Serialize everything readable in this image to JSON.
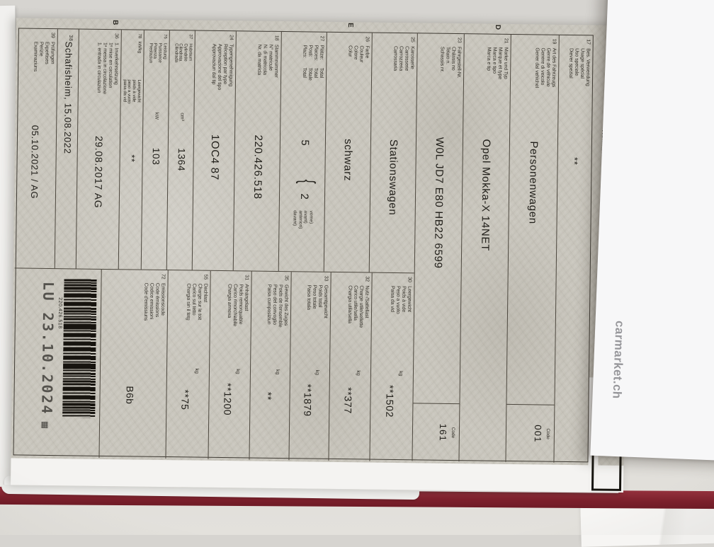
{
  "scene": {
    "card_brand": "carmarket.ch"
  },
  "doc": {
    "header_label": "Nummer",
    "code_label": "Code",
    "sections": {
      "d": "D",
      "e": "E",
      "b": "B"
    },
    "codes": {
      "vehicle_type": "001",
      "color": "161"
    },
    "barcode_number": "220.426.518",
    "stamp": "LU 23.10.2024",
    "fields": {
      "f17": {
        "num": "17",
        "label": [
          "Bes. Verwendung",
          "Usage spécial",
          "Uso speciale",
          "Diever spezial"
        ],
        "value": "**"
      },
      "f19": {
        "num": "19",
        "label": [
          "Art des Fahrzeugs",
          "Genre de véhicule",
          "Genere di veicolo",
          "Gener dal vehichel"
        ],
        "value": "Personenwagen"
      },
      "f21": {
        "num": "21",
        "label": [
          "Marke und Typ",
          "Marque et type",
          "Marca e tipo",
          "Marca e tip"
        ],
        "value": "Opel Mokka-X 14NET"
      },
      "f23": {
        "num": "23",
        "label": [
          "Fahrgestell-Nr.",
          "Châssis no",
          "Telaio n.",
          "Schassis nr."
        ],
        "value": "W0L JD7 E80 HB22 6599"
      },
      "f25": {
        "num": "25",
        "label": [
          "Karosserie",
          "Carrosserie",
          "Carrozzeria",
          "Carrossaria"
        ],
        "value": "Stationswagen"
      },
      "f26": {
        "num": "26",
        "label": [
          "Farbe",
          "Couleur",
          "Colore",
          "Colur"
        ],
        "value": "schwarz"
      },
      "f27": {
        "num": "27",
        "label_a": [
          "Plätze:",
          "Places:",
          "Posti:",
          "Plazs:"
        ],
        "label_b": [
          "Total",
          "Total",
          "Totale",
          "Total"
        ],
        "value_total": "5",
        "value_front": "2",
        "front_note": [
          "vorne)",
          "avant)",
          "anteriori)",
          "davant)"
        ]
      },
      "f18": {
        "num": "18",
        "label": [
          "Stammnummer",
          "N° matricule",
          "N. di matricola",
          "Nr. da matricla"
        ],
        "value": "220.426.518"
      },
      "f24": {
        "num": "24",
        "label": [
          "Typengenehmigung",
          "Réception par type",
          "Approvazione del tipo",
          "Approvaziun dal tip"
        ],
        "value": "1OC4 87"
      },
      "f37": {
        "num": "37",
        "label": [
          "Hubraum",
          "Cylindrée",
          "Cilindrata",
          "Cilindrada"
        ],
        "unit": "cm³",
        "value": "1364"
      },
      "f76": {
        "num": "76",
        "label": [
          "Leistung",
          "Puissance",
          "Potenza",
          "Prestaziun"
        ],
        "unit": "kW",
        "value": "103"
      },
      "f78": {
        "num": "78",
        "unit": "kW/kg",
        "label": [
          "Leergewicht",
          "poids à vide",
          "peso a vuoto",
          "paisa da vid"
        ],
        "value": "**"
      },
      "f36": {
        "num": "36",
        "label": [
          "1. Inverkehrsetzung",
          "1ᵉ mise en circulation",
          "1ᵃ messa in circolazione",
          "1. entrada in circulaziun"
        ],
        "value": "29.08.2017 AG"
      },
      "f38": {
        "sup": "38",
        "value": "Schafisheim, 15.08.2022"
      },
      "f39": {
        "num": "39",
        "label": [
          "Prüfungen",
          "Expertises",
          "Perizie",
          "Examinaziuns"
        ],
        "value": "05.10.2021 / AG"
      },
      "f30": {
        "num": "30",
        "label": [
          "Leergewicht",
          "Poids à vide",
          "Peso a vuoto",
          "Paisa da vid"
        ],
        "unit": "kg",
        "value": "**1502"
      },
      "f32": {
        "num": "32",
        "label": [
          "Nutz-/Sattellast",
          "Charge utile/sellette",
          "Carico utile/sella",
          "Chargia utila/sella"
        ],
        "unit": "kg",
        "value": "**377"
      },
      "f33": {
        "num": "33",
        "label": [
          "Gesamtgewicht",
          "Poids total",
          "Peso totale",
          "Paisa totala"
        ],
        "unit": "kg",
        "value": "**1879"
      },
      "f35": {
        "num": "35",
        "label": [
          "Gewicht des Zuges",
          "Poids de l'ensemble",
          "Peso del convoglio",
          "Paisa cumposiziun"
        ],
        "unit": "kg",
        "value": "**"
      },
      "f31": {
        "num": "31",
        "label": [
          "Anhängelast",
          "Poids remorquable",
          "Carico rimorchiabile",
          "Chargia annexa"
        ],
        "unit": "kg",
        "value": "**1200"
      },
      "f55": {
        "num": "55",
        "label": [
          "Dachlast",
          "Charge sur le toit",
          "Carico sul tetto",
          "Chargia sin il tetg"
        ],
        "unit": "kg",
        "value": "**75"
      },
      "f72": {
        "num": "72",
        "label": [
          "Emissionscode",
          "Code émissions",
          "Codice emissioni",
          "Code d'emissiuns"
        ],
        "value": "B6b"
      }
    }
  }
}
